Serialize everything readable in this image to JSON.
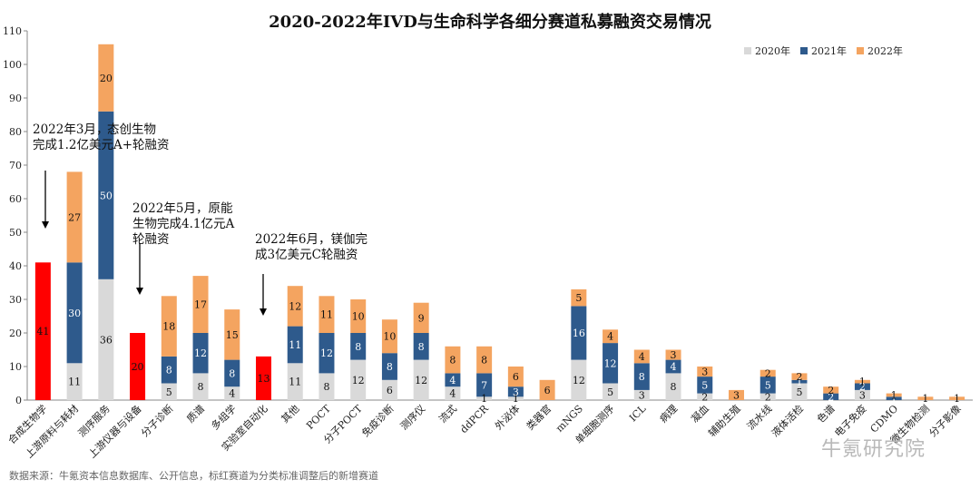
{
  "chart_data": {
    "type": "bar",
    "stacked": true,
    "title": "2020-2022年IVD与生命科学各细分赛道私募融资交易情况",
    "ylim": [
      0,
      110
    ],
    "yticks": [
      0,
      10,
      20,
      30,
      40,
      50,
      60,
      70,
      80,
      90,
      100,
      110
    ],
    "grid": false,
    "legend_position": "top-right",
    "categories": [
      "合成生物学",
      "上游原料与耗材",
      "测序服务",
      "上游仪器与设备",
      "分子诊断",
      "质谱",
      "多组学",
      "实验室自动化",
      "其他",
      "POCT",
      "分子POCT",
      "免疫诊断",
      "测序仪",
      "流式",
      "ddPCR",
      "外泌体",
      "类器官",
      "mNGS",
      "单细胞测序",
      "ICL",
      "病理",
      "凝血",
      "辅助生殖",
      "流水线",
      "液体活检",
      "色谱",
      "电子免疫",
      "CDMO",
      "微生物检测",
      "分子影像"
    ],
    "series": [
      {
        "name": "2020年",
        "color": "#d9d9d9",
        "values": [
          0,
          11,
          36,
          0,
          5,
          8,
          4,
          0,
          11,
          8,
          12,
          6,
          12,
          4,
          1,
          1,
          0,
          12,
          5,
          3,
          8,
          2,
          0,
          2,
          5,
          0,
          3,
          0,
          0,
          0
        ]
      },
      {
        "name": "2021年",
        "color": "#2e5a8c",
        "values": [
          0,
          30,
          50,
          0,
          8,
          12,
          8,
          0,
          11,
          12,
          8,
          8,
          8,
          4,
          7,
          3,
          0,
          16,
          12,
          8,
          4,
          5,
          0,
          5,
          1,
          2,
          2,
          1,
          0,
          0
        ]
      },
      {
        "name": "2022年",
        "color": "#f4a460",
        "values": [
          0,
          27,
          20,
          0,
          18,
          17,
          15,
          0,
          12,
          11,
          10,
          10,
          9,
          8,
          8,
          6,
          6,
          5,
          4,
          4,
          3,
          3,
          3,
          2,
          2,
          2,
          1,
          1,
          1,
          1
        ]
      },
      {
        "name": "",
        "color": "#ff0000",
        "values": [
          41,
          0,
          0,
          20,
          0,
          0,
          0,
          13,
          0,
          0,
          0,
          0,
          0,
          0,
          0,
          0,
          0,
          0,
          0,
          0,
          0,
          0,
          0,
          0,
          0,
          0,
          0,
          0,
          0,
          0
        ]
      }
    ],
    "annotations": [
      {
        "lines": [
          "2022年3月，",
          "态创生物",
          "完成1.2亿美元A+轮融资"
        ],
        "target": "合成生物学"
      },
      {
        "lines": [
          "2022年5月，原能",
          "生物完成4.1亿元A",
          "轮融资"
        ],
        "target": "上游仪器与设备"
      },
      {
        "lines": [
          "2022年6月，镁伽完",
          "成3亿美元C轮融资"
        ],
        "target": "实验室自动化"
      }
    ]
  },
  "source_note": "数据来源：牛氪资本信息数据库、公开信息，标红赛道为分类标准调整后的新增赛道",
  "watermark": "牛氪研究院"
}
